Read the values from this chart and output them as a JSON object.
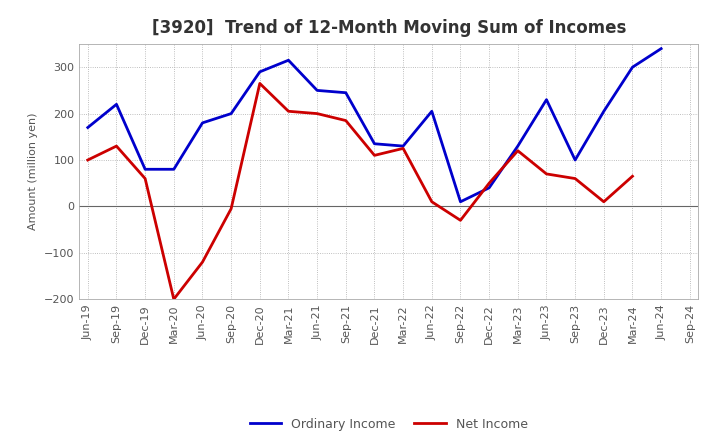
{
  "title": "[3920]  Trend of 12-Month Moving Sum of Incomes",
  "ylabel": "Amount (million yen)",
  "x_labels": [
    "Jun-19",
    "Sep-19",
    "Dec-19",
    "Mar-20",
    "Jun-20",
    "Sep-20",
    "Dec-20",
    "Mar-21",
    "Jun-21",
    "Sep-21",
    "Dec-21",
    "Mar-22",
    "Jun-22",
    "Sep-22",
    "Dec-22",
    "Mar-23",
    "Jun-23",
    "Sep-23",
    "Dec-23",
    "Mar-24",
    "Jun-24",
    "Sep-24"
  ],
  "ordinary_income": [
    170,
    220,
    80,
    80,
    180,
    200,
    290,
    315,
    250,
    245,
    135,
    130,
    205,
    10,
    40,
    130,
    230,
    100,
    205,
    300,
    340,
    null
  ],
  "net_income": [
    100,
    130,
    60,
    -200,
    -120,
    -5,
    265,
    205,
    200,
    185,
    110,
    125,
    10,
    -30,
    50,
    120,
    70,
    60,
    10,
    65,
    null,
    null
  ],
  "ordinary_color": "#0000cc",
  "net_color": "#cc0000",
  "line_width": 2.0,
  "ylim": [
    -200,
    350
  ],
  "yticks": [
    -200,
    -100,
    0,
    100,
    200,
    300
  ],
  "grid_color": "#aaaaaa",
  "bg_color": "#ffffff",
  "legend_ordinary": "Ordinary Income",
  "legend_net": "Net Income",
  "title_fontsize": 12,
  "title_color": "#333333",
  "axis_fontsize": 8,
  "legend_fontsize": 9,
  "tick_color": "#555555"
}
